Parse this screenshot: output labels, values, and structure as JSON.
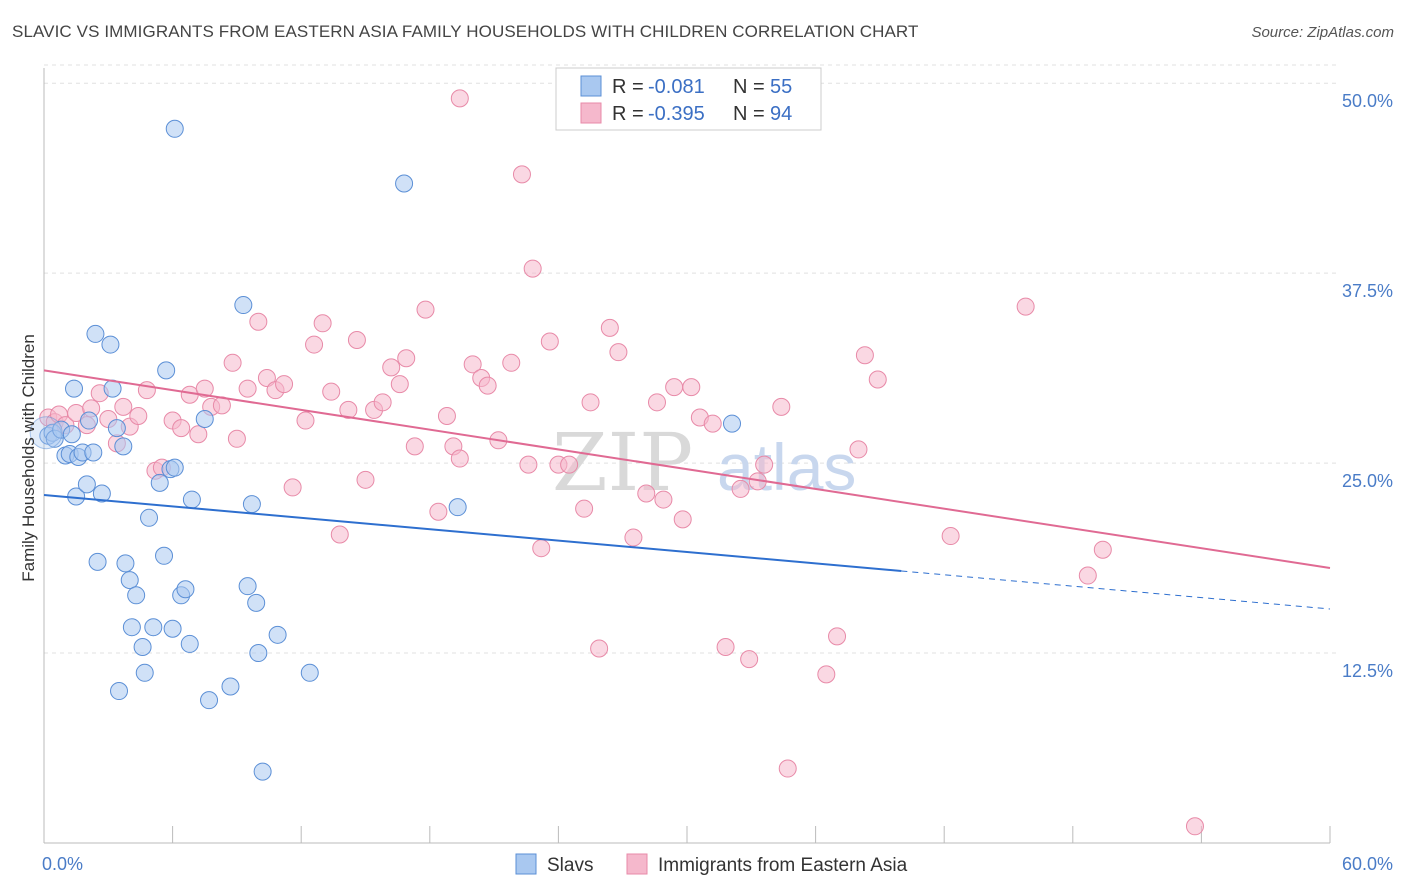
{
  "title": "SLAVIC VS IMMIGRANTS FROM EASTERN ASIA FAMILY HOUSEHOLDS WITH CHILDREN CORRELATION CHART",
  "source": "Source: ZipAtlas.com",
  "colors": {
    "slavs_fill": "#a9c8f0",
    "slavs_stroke": "#5b8fd6",
    "slavs_line": "#2e6fcf",
    "asia_fill": "#f5b8cc",
    "asia_stroke": "#e88aa8",
    "asia_line": "#e06a93"
  },
  "legend": {
    "r_label": "R =",
    "n_label": "N =",
    "slavs": {
      "r": "-0.081",
      "n": "55"
    },
    "asia": {
      "r": "-0.395",
      "n": "94"
    }
  },
  "watermark": {
    "zip": "ZIP",
    "atlas": "atlas"
  },
  "chart_data": {
    "type": "scatter",
    "xlabel": "",
    "ylabel": "Family Households with Children",
    "xlim": [
      0,
      60
    ],
    "ylim": [
      0,
      51
    ],
    "x_tick_labels": [
      "0.0%",
      "60.0%"
    ],
    "y_ticks": [
      12.5,
      25.0,
      37.5,
      50.0
    ],
    "y_tick_labels": [
      "12.5%",
      "25.0%",
      "37.5%",
      "50.0%"
    ],
    "grid": true,
    "series": [
      {
        "name": "Slavs",
        "trend": {
          "x0": 0,
          "y0": 22.9,
          "x1": 40,
          "y1": 17.9,
          "dash_to_x": 60,
          "dash_to_y": 15.4
        },
        "points": [
          [
            0.2,
            26.8
          ],
          [
            0.4,
            27.0
          ],
          [
            0.5,
            26.6
          ],
          [
            0.8,
            27.2
          ],
          [
            1.0,
            25.5
          ],
          [
            1.2,
            25.6
          ],
          [
            1.3,
            26.9
          ],
          [
            1.4,
            29.9
          ],
          [
            1.5,
            22.8
          ],
          [
            1.6,
            25.4
          ],
          [
            1.8,
            25.7
          ],
          [
            2.0,
            23.6
          ],
          [
            2.1,
            27.8
          ],
          [
            2.3,
            25.7
          ],
          [
            2.4,
            33.5
          ],
          [
            2.5,
            18.5
          ],
          [
            2.7,
            23.0
          ],
          [
            3.1,
            32.8
          ],
          [
            3.2,
            29.9
          ],
          [
            3.4,
            27.3
          ],
          [
            3.5,
            10.0
          ],
          [
            3.7,
            26.1
          ],
          [
            3.8,
            18.4
          ],
          [
            4.0,
            17.3
          ],
          [
            4.1,
            14.2
          ],
          [
            4.3,
            16.3
          ],
          [
            4.6,
            12.9
          ],
          [
            4.7,
            11.2
          ],
          [
            4.9,
            21.4
          ],
          [
            5.1,
            14.2
          ],
          [
            5.4,
            23.7
          ],
          [
            5.6,
            18.9
          ],
          [
            5.7,
            31.1
          ],
          [
            5.9,
            24.6
          ],
          [
            6.0,
            14.1
          ],
          [
            6.1,
            24.7
          ],
          [
            6.1,
            47.0
          ],
          [
            6.4,
            16.3
          ],
          [
            6.6,
            16.7
          ],
          [
            6.8,
            13.1
          ],
          [
            6.9,
            22.6
          ],
          [
            7.5,
            27.9
          ],
          [
            7.7,
            9.4
          ],
          [
            8.7,
            10.3
          ],
          [
            9.3,
            35.4
          ],
          [
            9.5,
            16.9
          ],
          [
            9.7,
            22.3
          ],
          [
            9.9,
            15.8
          ],
          [
            10.0,
            12.5
          ],
          [
            10.2,
            4.7
          ],
          [
            10.9,
            13.7
          ],
          [
            12.4,
            11.2
          ],
          [
            16.8,
            43.4
          ],
          [
            19.3,
            22.1
          ],
          [
            32.1,
            27.6
          ]
        ]
      },
      {
        "name": "Immigrants from Eastern Asia",
        "trend": {
          "x0": 0,
          "y0": 31.1,
          "x1": 60,
          "y1": 18.1
        },
        "points": [
          [
            0.2,
            28.0
          ],
          [
            0.5,
            27.7
          ],
          [
            0.7,
            28.2
          ],
          [
            1.0,
            27.5
          ],
          [
            1.5,
            28.3
          ],
          [
            2.0,
            27.5
          ],
          [
            2.2,
            28.6
          ],
          [
            2.6,
            29.6
          ],
          [
            3.0,
            27.9
          ],
          [
            3.4,
            26.3
          ],
          [
            3.7,
            28.7
          ],
          [
            4.0,
            27.4
          ],
          [
            4.4,
            28.1
          ],
          [
            4.8,
            29.8
          ],
          [
            5.2,
            24.5
          ],
          [
            5.5,
            24.7
          ],
          [
            6.0,
            27.8
          ],
          [
            6.4,
            27.3
          ],
          [
            6.8,
            29.5
          ],
          [
            7.2,
            26.9
          ],
          [
            7.5,
            29.9
          ],
          [
            7.8,
            28.7
          ],
          [
            8.3,
            28.8
          ],
          [
            8.8,
            31.6
          ],
          [
            9.0,
            26.6
          ],
          [
            9.5,
            29.9
          ],
          [
            10.0,
            34.3
          ],
          [
            10.4,
            30.6
          ],
          [
            10.8,
            29.8
          ],
          [
            11.2,
            30.2
          ],
          [
            11.6,
            23.4
          ],
          [
            12.2,
            27.8
          ],
          [
            12.6,
            32.8
          ],
          [
            13.0,
            34.2
          ],
          [
            13.4,
            29.7
          ],
          [
            13.8,
            20.3
          ],
          [
            14.2,
            28.5
          ],
          [
            14.6,
            33.1
          ],
          [
            15.0,
            23.9
          ],
          [
            15.4,
            28.5
          ],
          [
            15.8,
            29.0
          ],
          [
            16.2,
            31.3
          ],
          [
            16.6,
            30.2
          ],
          [
            16.9,
            31.9
          ],
          [
            17.3,
            26.1
          ],
          [
            17.8,
            35.1
          ],
          [
            18.4,
            21.8
          ],
          [
            18.8,
            28.1
          ],
          [
            19.1,
            26.1
          ],
          [
            19.4,
            25.3
          ],
          [
            19.4,
            49.0
          ],
          [
            20.0,
            31.5
          ],
          [
            20.4,
            30.6
          ],
          [
            20.7,
            30.1
          ],
          [
            21.2,
            26.5
          ],
          [
            21.8,
            31.6
          ],
          [
            22.3,
            44.0
          ],
          [
            22.6,
            24.9
          ],
          [
            22.8,
            37.8
          ],
          [
            23.2,
            19.4
          ],
          [
            23.6,
            33.0
          ],
          [
            24.0,
            24.9
          ],
          [
            24.5,
            24.9
          ],
          [
            25.2,
            22.0
          ],
          [
            25.5,
            29.0
          ],
          [
            25.9,
            12.8
          ],
          [
            26.4,
            33.9
          ],
          [
            26.8,
            32.3
          ],
          [
            27.5,
            20.1
          ],
          [
            28.1,
            23.0
          ],
          [
            28.6,
            29.0
          ],
          [
            28.9,
            22.6
          ],
          [
            29.4,
            30.0
          ],
          [
            29.8,
            21.3
          ],
          [
            30.2,
            30.0
          ],
          [
            30.6,
            28.0
          ],
          [
            31.2,
            27.6
          ],
          [
            31.8,
            12.9
          ],
          [
            32.5,
            23.3
          ],
          [
            32.9,
            12.1
          ],
          [
            33.3,
            23.8
          ],
          [
            33.6,
            24.9
          ],
          [
            34.4,
            28.7
          ],
          [
            34.7,
            4.9
          ],
          [
            36.5,
            11.1
          ],
          [
            37.0,
            13.6
          ],
          [
            38.0,
            25.9
          ],
          [
            38.3,
            32.1
          ],
          [
            38.9,
            30.5
          ],
          [
            42.3,
            20.2
          ],
          [
            45.8,
            35.3
          ],
          [
            48.7,
            17.6
          ],
          [
            49.4,
            19.3
          ],
          [
            53.7,
            1.1
          ]
        ]
      }
    ]
  },
  "bottom_legend": {
    "slavs": "Slavs",
    "asia": "Immigrants from Eastern Asia"
  }
}
